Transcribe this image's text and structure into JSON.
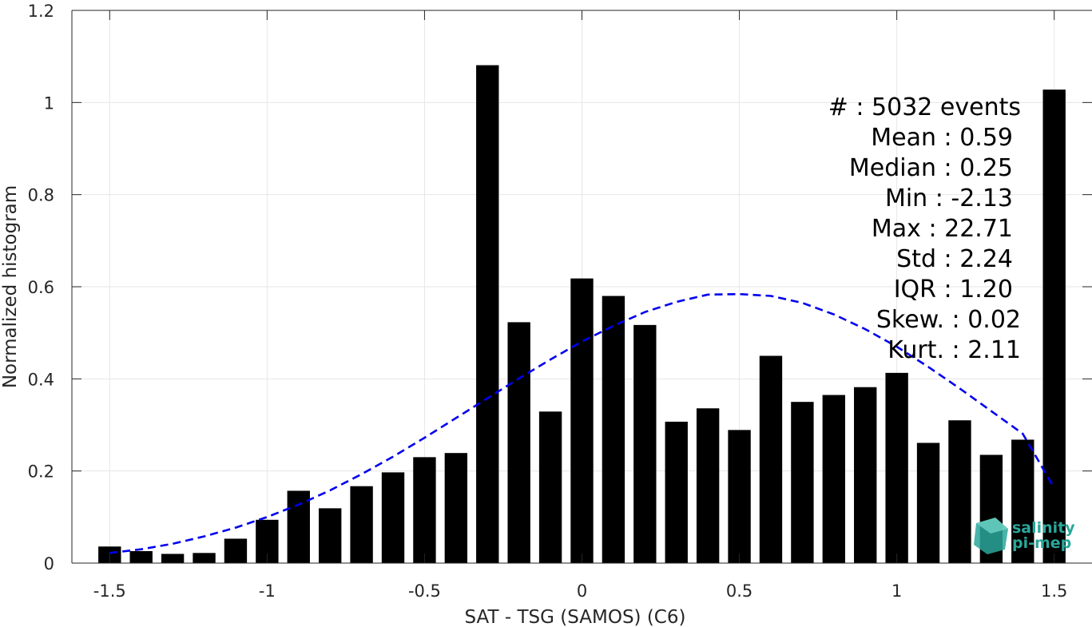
{
  "chart_data": {
    "type": "bar",
    "xlabel": "SAT - TSG (SAMOS) (C6)",
    "ylabel": "Normalized histogram",
    "xlim": [
      -1.62,
      1.62
    ],
    "ylim": [
      0,
      1.2
    ],
    "grid": true,
    "x_ticks": [
      -1.5,
      -1,
      -0.5,
      0,
      0.5,
      1,
      1.5
    ],
    "x_tick_labels": [
      "-1.5",
      "-1",
      "-0.5",
      "0",
      "0.5",
      "1",
      "1.5"
    ],
    "y_ticks": [
      0,
      0.2,
      0.4,
      0.6,
      0.8,
      1,
      1.2
    ],
    "y_tick_labels": [
      "0",
      "0.2",
      "0.4",
      "0.6",
      "0.8",
      "1",
      "1.2"
    ],
    "bar_color": "#000000",
    "x": [
      -1.5,
      -1.4,
      -1.3,
      -1.2,
      -1.1,
      -1.0,
      -0.9,
      -0.8,
      -0.7,
      -0.6,
      -0.5,
      -0.4,
      -0.3,
      -0.2,
      -0.1,
      0.0,
      0.1,
      0.2,
      0.3,
      0.4,
      0.5,
      0.6,
      0.7,
      0.8,
      0.9,
      1.0,
      1.1,
      1.2,
      1.3,
      1.4,
      1.5
    ],
    "values": [
      0.036,
      0.026,
      0.02,
      0.022,
      0.053,
      0.094,
      0.157,
      0.119,
      0.167,
      0.197,
      0.23,
      0.239,
      1.081,
      0.523,
      0.329,
      0.618,
      0.58,
      0.517,
      0.307,
      0.336,
      0.289,
      0.45,
      0.35,
      0.365,
      0.382,
      0.413,
      0.261,
      0.31,
      0.235,
      0.268,
      1.028
    ],
    "fit_curve": {
      "style": "dashed",
      "color": "#0000ee",
      "x": [
        -1.5,
        -1.4,
        -1.3,
        -1.2,
        -1.1,
        -1.0,
        -0.9,
        -0.8,
        -0.7,
        -0.6,
        -0.5,
        -0.4,
        -0.3,
        -0.2,
        -0.1,
        0.0,
        0.1,
        0.2,
        0.3,
        0.4,
        0.5,
        0.6,
        0.7,
        0.8,
        0.9,
        1.0,
        1.1,
        1.2,
        1.3,
        1.4,
        1.5
      ],
      "y": [
        0.022,
        0.03,
        0.042,
        0.058,
        0.077,
        0.1,
        0.127,
        0.158,
        0.193,
        0.231,
        0.272,
        0.315,
        0.358,
        0.401,
        0.442,
        0.481,
        0.515,
        0.545,
        0.567,
        0.583,
        0.584,
        0.58,
        0.565,
        0.54,
        0.508,
        0.47,
        0.426,
        0.379,
        0.33,
        0.281,
        0.163
      ]
    },
    "annotations": [
      "#  : 5032 events",
      "Mean : 0.59",
      "Median : 0.25",
      "Min : -2.13",
      "Max : 22.71",
      "Std : 2.24",
      "IQR : 1.20",
      "Skew. : 0.02",
      "Kurt. : 2.11"
    ],
    "logo": {
      "line1": "salinity",
      "line2": "pi-mep",
      "color": "#2aa79b"
    }
  }
}
